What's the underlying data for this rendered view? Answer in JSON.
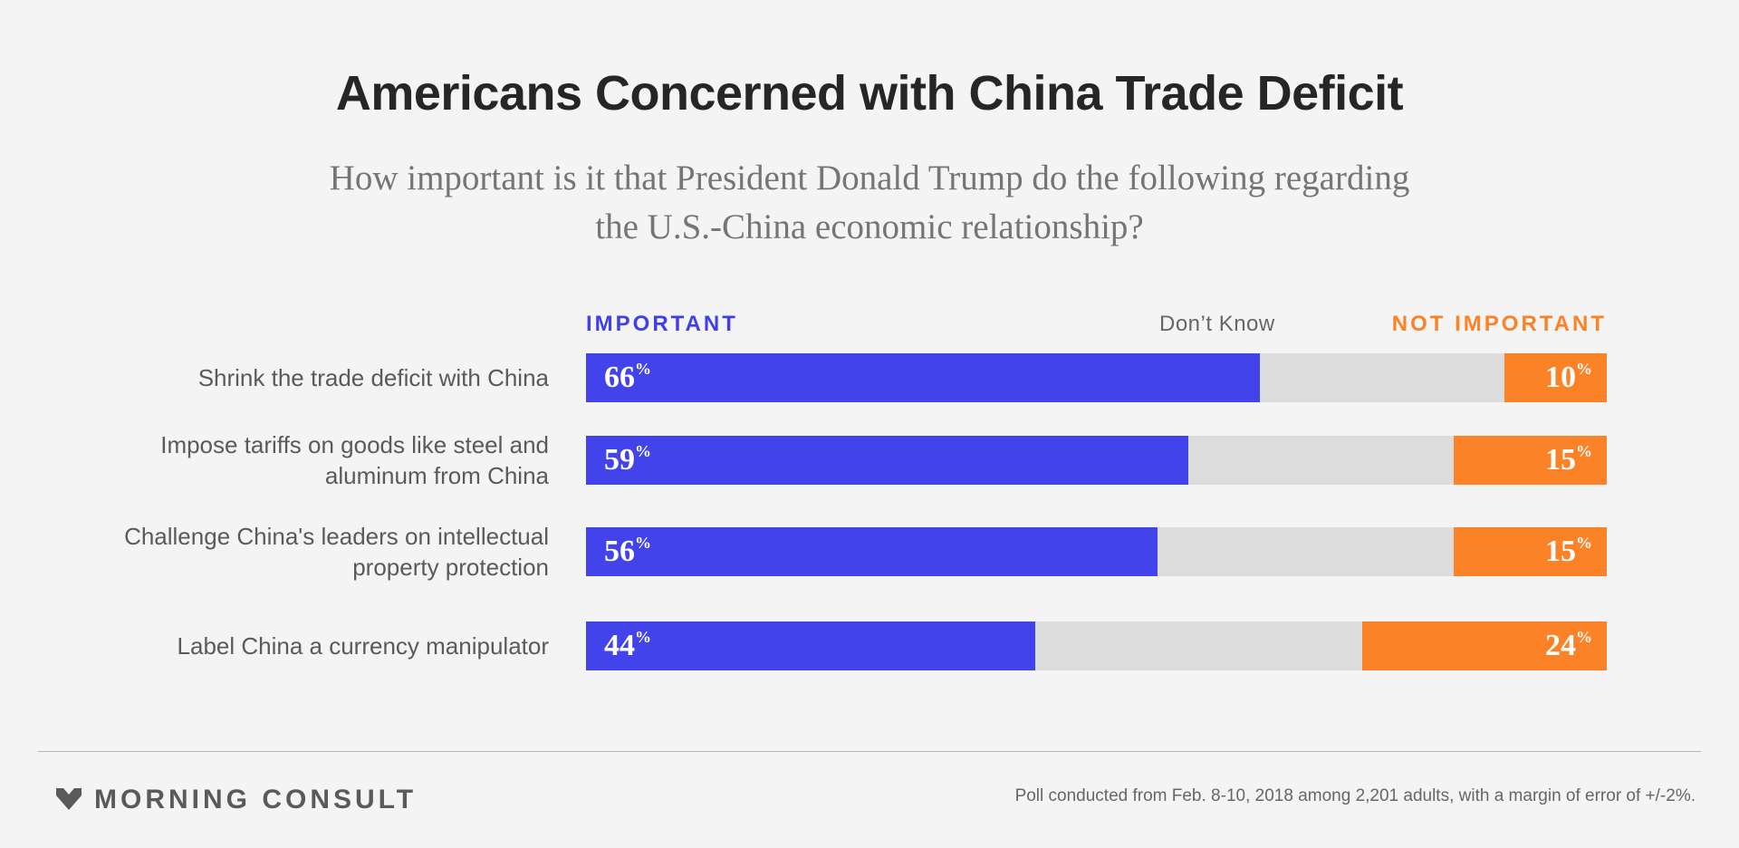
{
  "chart_data": {
    "type": "bar",
    "orientation": "horizontal",
    "stacked": true,
    "title": "Americans Concerned with China Trade Deficit",
    "subtitle": "How important is it that President Donald Trump do the following regarding the U.S.-China economic relationship?",
    "categories": [
      "Shrink the trade deficit with China",
      "Impose tariffs on goods like steel and aluminum from China",
      "Challenge China's leaders on intellectual property protection",
      "Label China a currency manipulator"
    ],
    "series": [
      {
        "name": "IMPORTANT",
        "values": [
          66,
          59,
          56,
          44
        ],
        "color": "#4343eb"
      },
      {
        "name": "Don’t Know",
        "values": [
          24,
          26,
          29,
          32
        ],
        "color": "#dcdcdc"
      },
      {
        "name": "NOT IMPORTANT",
        "values": [
          10,
          15,
          15,
          24
        ],
        "color": "#fb8226"
      }
    ],
    "value_suffix": "%",
    "xlim": [
      0,
      100
    ],
    "grid": false,
    "legend": "top"
  },
  "brand": {
    "name": "MORNING CONSULT",
    "logo_icon": "chevron-down-icon"
  },
  "footnote": "Poll conducted from Feb. 8-10, 2018 among 2,201 adults, with a margin of error of +/-2%."
}
